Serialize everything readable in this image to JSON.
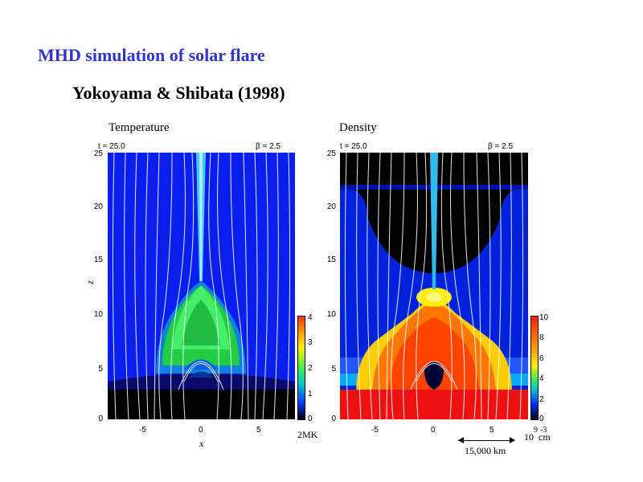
{
  "slide": {
    "title": "MHD simulation of solar flare",
    "subtitle": "Yokoyama & Shibata (1998)"
  },
  "panels": {
    "temperature": {
      "title": "Temperature",
      "time_label": "t = 25.0",
      "beta_label": "β = 2.5",
      "colorbar_ticks": [
        "4",
        "3",
        "2",
        "1",
        "0"
      ],
      "colorbar_unit": "2MK"
    },
    "density": {
      "title": "Density",
      "time_label": "t = 25.0",
      "beta_label": "β = 2.5",
      "colorbar_ticks": [
        "10",
        "8",
        "6",
        "4",
        "2",
        "0"
      ],
      "colorbar_unit_main": "10",
      "colorbar_unit_exp": "9",
      "colorbar_unit_tail": "cm",
      "colorbar_unit_exp2": "-3"
    }
  },
  "axes": {
    "x_label": "x",
    "z_label": "z",
    "z_ticks": [
      "25",
      "20",
      "15",
      "10",
      "5",
      "0"
    ],
    "x_ticks": [
      "-5",
      "0",
      "5"
    ]
  },
  "scale_bar": {
    "label": "15,000 km"
  },
  "chart_data": [
    {
      "type": "heatmap",
      "title": "Temperature",
      "xlabel": "x",
      "ylabel": "z",
      "xlim": [
        -8,
        8
      ],
      "ylim": [
        0,
        25
      ],
      "colorbar": {
        "min": 0,
        "max": 4,
        "unit": "2MK"
      }
    },
    {
      "type": "heatmap",
      "title": "Density",
      "xlabel": "x",
      "ylabel": "z",
      "xlim": [
        -8,
        8
      ],
      "ylim": [
        0,
        25
      ],
      "colorbar": {
        "min": 0,
        "max": 10,
        "unit": "10^9 cm^-3"
      }
    }
  ]
}
